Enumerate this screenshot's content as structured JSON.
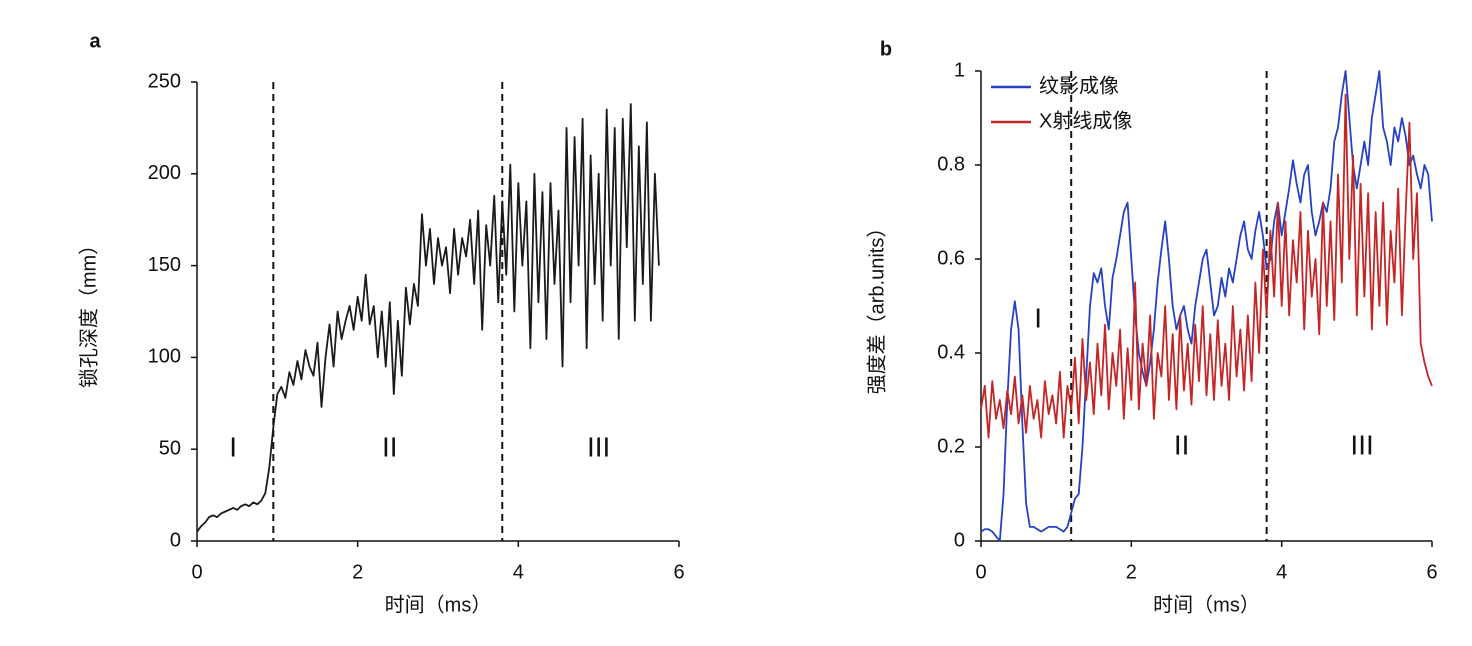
{
  "chart_data": [
    {
      "type": "line",
      "panel_label": "a",
      "x_label": "时间（ms）",
      "y_label": "锁孔深度（mm）",
      "xlim": [
        0,
        6
      ],
      "ylim": [
        0,
        250
      ],
      "xticks": [
        0,
        2,
        4,
        6
      ],
      "yticks": [
        0,
        50,
        100,
        150,
        200,
        250
      ],
      "vlines": [
        0.95,
        3.8
      ],
      "annotations": [
        "I",
        "II",
        "III"
      ],
      "x": [
        0,
        0.05,
        0.1,
        0.15,
        0.2,
        0.25,
        0.3,
        0.35,
        0.4,
        0.45,
        0.5,
        0.55,
        0.6,
        0.65,
        0.7,
        0.75,
        0.8,
        0.85,
        0.9,
        0.95,
        1,
        1.05,
        1.1,
        1.15,
        1.2,
        1.25,
        1.3,
        1.35,
        1.4,
        1.45,
        1.5,
        1.55,
        1.6,
        1.65,
        1.7,
        1.75,
        1.8,
        1.85,
        1.9,
        1.95,
        2,
        2.05,
        2.1,
        2.15,
        2.2,
        2.25,
        2.3,
        2.35,
        2.4,
        2.45,
        2.5,
        2.55,
        2.6,
        2.65,
        2.7,
        2.75,
        2.8,
        2.85,
        2.9,
        2.95,
        3,
        3.05,
        3.1,
        3.15,
        3.2,
        3.25,
        3.3,
        3.35,
        3.4,
        3.45,
        3.5,
        3.55,
        3.6,
        3.65,
        3.7,
        3.75,
        3.8,
        3.85,
        3.9,
        3.95,
        4,
        4.05,
        4.1,
        4.15,
        4.2,
        4.25,
        4.3,
        4.35,
        4.4,
        4.45,
        4.5,
        4.55,
        4.6,
        4.65,
        4.7,
        4.75,
        4.8,
        4.85,
        4.9,
        4.95,
        5,
        5.05,
        5.1,
        5.15,
        5.2,
        5.25,
        5.3,
        5.35,
        5.4,
        5.45,
        5.5,
        5.55,
        5.6,
        5.65,
        5.7,
        5.75
      ],
      "series": [
        {
          "color": "#1a1a1a",
          "values": [
            5,
            8,
            10,
            13,
            14,
            13,
            15,
            16,
            17,
            18,
            17,
            19,
            20,
            19,
            21,
            20,
            22,
            26,
            40,
            62,
            80,
            84,
            78,
            92,
            85,
            98,
            88,
            104,
            95,
            90,
            108,
            73,
            100,
            118,
            95,
            125,
            110,
            120,
            128,
            115,
            133,
            120,
            145,
            118,
            128,
            100,
            125,
            95,
            130,
            80,
            120,
            90,
            138,
            118,
            140,
            128,
            178,
            150,
            170,
            140,
            165,
            150,
            160,
            135,
            170,
            145,
            165,
            155,
            175,
            140,
            180,
            115,
            172,
            150,
            188,
            130,
            185,
            145,
            205,
            125,
            195,
            150,
            185,
            105,
            200,
            130,
            190,
            110,
            195,
            140,
            180,
            95,
            225,
            130,
            220,
            150,
            230,
            105,
            210,
            140,
            200,
            120,
            235,
            150,
            225,
            110,
            230,
            160,
            238,
            120,
            215,
            140,
            228,
            120,
            200,
            150
          ]
        }
      ]
    },
    {
      "type": "line",
      "panel_label": "b",
      "x_label": "时间（ms）",
      "y_label": "强度差（arb.units）",
      "xlim": [
        0,
        6
      ],
      "ylim": [
        0,
        1
      ],
      "xticks": [
        0,
        2,
        4,
        6
      ],
      "yticks": [
        0,
        0.2,
        0.4,
        0.6,
        0.8,
        1
      ],
      "vlines": [
        1.2,
        3.8
      ],
      "annotations": [
        "I",
        "II",
        "III"
      ],
      "legend": "top-left",
      "x": [
        0,
        0.05,
        0.1,
        0.15,
        0.2,
        0.25,
        0.3,
        0.35,
        0.4,
        0.45,
        0.5,
        0.55,
        0.6,
        0.65,
        0.7,
        0.75,
        0.8,
        0.85,
        0.9,
        0.95,
        1,
        1.05,
        1.1,
        1.15,
        1.2,
        1.25,
        1.3,
        1.35,
        1.4,
        1.45,
        1.5,
        1.55,
        1.6,
        1.65,
        1.7,
        1.75,
        1.8,
        1.85,
        1.9,
        1.95,
        2,
        2.05,
        2.1,
        2.15,
        2.2,
        2.25,
        2.3,
        2.35,
        2.4,
        2.45,
        2.5,
        2.55,
        2.6,
        2.65,
        2.7,
        2.75,
        2.8,
        2.85,
        2.9,
        2.95,
        3,
        3.05,
        3.1,
        3.15,
        3.2,
        3.25,
        3.3,
        3.35,
        3.4,
        3.45,
        3.5,
        3.55,
        3.6,
        3.65,
        3.7,
        3.75,
        3.8,
        3.85,
        3.9,
        3.95,
        4,
        4.05,
        4.1,
        4.15,
        4.2,
        4.25,
        4.3,
        4.35,
        4.4,
        4.45,
        4.5,
        4.55,
        4.6,
        4.65,
        4.7,
        4.75,
        4.8,
        4.85,
        4.9,
        4.95,
        5,
        5.05,
        5.1,
        5.15,
        5.2,
        5.25,
        5.3,
        5.35,
        5.4,
        5.45,
        5.5,
        5.55,
        5.6,
        5.65,
        5.7,
        5.75,
        5.8,
        5.85,
        5.9,
        5.95,
        6
      ],
      "series": [
        {
          "name": "纹影成像",
          "color": "#2541c4",
          "values": [
            0.02,
            0.025,
            0.025,
            0.02,
            0.01,
            0.0,
            0.1,
            0.3,
            0.45,
            0.51,
            0.45,
            0.25,
            0.08,
            0.03,
            0.03,
            0.025,
            0.02,
            0.025,
            0.03,
            0.03,
            0.03,
            0.025,
            0.02,
            0.03,
            0.06,
            0.09,
            0.1,
            0.2,
            0.35,
            0.5,
            0.57,
            0.55,
            0.58,
            0.5,
            0.45,
            0.56,
            0.6,
            0.65,
            0.7,
            0.72,
            0.6,
            0.48,
            0.4,
            0.36,
            0.33,
            0.38,
            0.45,
            0.55,
            0.62,
            0.68,
            0.6,
            0.5,
            0.45,
            0.48,
            0.5,
            0.45,
            0.42,
            0.5,
            0.55,
            0.6,
            0.62,
            0.55,
            0.48,
            0.5,
            0.56,
            0.52,
            0.58,
            0.55,
            0.6,
            0.65,
            0.68,
            0.62,
            0.6,
            0.66,
            0.7,
            0.65,
            0.58,
            0.6,
            0.68,
            0.72,
            0.65,
            0.7,
            0.75,
            0.81,
            0.76,
            0.72,
            0.78,
            0.8,
            0.7,
            0.65,
            0.68,
            0.72,
            0.7,
            0.75,
            0.85,
            0.88,
            0.95,
            1.0,
            0.9,
            0.8,
            0.75,
            0.8,
            0.85,
            0.8,
            0.9,
            0.95,
            1.0,
            0.88,
            0.85,
            0.8,
            0.88,
            0.85,
            0.9,
            0.86,
            0.8,
            0.82,
            0.78,
            0.75,
            0.8,
            0.78,
            0.68
          ]
        },
        {
          "name": "X射线成像",
          "color": "#c42525",
          "values": [
            0.28,
            0.33,
            0.22,
            0.34,
            0.26,
            0.3,
            0.24,
            0.32,
            0.27,
            0.35,
            0.25,
            0.31,
            0.23,
            0.33,
            0.26,
            0.3,
            0.22,
            0.34,
            0.27,
            0.31,
            0.25,
            0.36,
            0.22,
            0.33,
            0.28,
            0.39,
            0.25,
            0.43,
            0.3,
            0.38,
            0.27,
            0.42,
            0.31,
            0.46,
            0.28,
            0.4,
            0.33,
            0.45,
            0.26,
            0.41,
            0.3,
            0.55,
            0.28,
            0.42,
            0.33,
            0.48,
            0.26,
            0.4,
            0.35,
            0.5,
            0.3,
            0.44,
            0.28,
            0.48,
            0.32,
            0.42,
            0.29,
            0.46,
            0.34,
            0.5,
            0.31,
            0.44,
            0.3,
            0.47,
            0.33,
            0.42,
            0.3,
            0.5,
            0.35,
            0.45,
            0.32,
            0.48,
            0.34,
            0.55,
            0.4,
            0.62,
            0.48,
            0.66,
            0.52,
            0.72,
            0.5,
            0.68,
            0.48,
            0.64,
            0.55,
            0.7,
            0.45,
            0.66,
            0.52,
            0.6,
            0.44,
            0.72,
            0.5,
            0.68,
            0.47,
            0.78,
            0.55,
            0.95,
            0.6,
            0.82,
            0.48,
            0.76,
            0.52,
            0.74,
            0.45,
            0.7,
            0.5,
            0.72,
            0.46,
            0.66,
            0.55,
            0.75,
            0.48,
            0.7,
            0.89,
            0.6,
            0.74,
            0.42,
            0.38,
            0.35,
            0.33
          ]
        }
      ]
    }
  ]
}
